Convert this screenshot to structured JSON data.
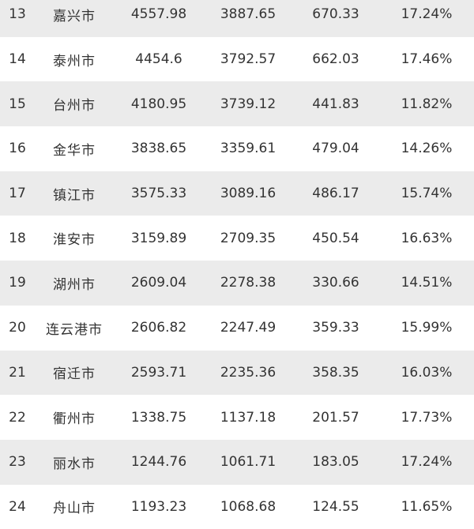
{
  "rows": [
    {
      "rank": "13",
      "city": "嘉兴市",
      "v1": "4557.98",
      "v2": "3887.65",
      "v3": "670.33",
      "pct": "17.24%"
    },
    {
      "rank": "14",
      "city": "泰州市",
      "v1": "4454.6",
      "v2": "3792.57",
      "v3": "662.03",
      "pct": "17.46%"
    },
    {
      "rank": "15",
      "city": "台州市",
      "v1": "4180.95",
      "v2": "3739.12",
      "v3": "441.83",
      "pct": "11.82%"
    },
    {
      "rank": "16",
      "city": "金华市",
      "v1": "3838.65",
      "v2": "3359.61",
      "v3": "479.04",
      "pct": "14.26%"
    },
    {
      "rank": "17",
      "city": "镇江市",
      "v1": "3575.33",
      "v2": "3089.16",
      "v3": "486.17",
      "pct": "15.74%"
    },
    {
      "rank": "18",
      "city": "淮安市",
      "v1": "3159.89",
      "v2": "2709.35",
      "v3": "450.54",
      "pct": "16.63%"
    },
    {
      "rank": "19",
      "city": "湖州市",
      "v1": "2609.04",
      "v2": "2278.38",
      "v3": "330.66",
      "pct": "14.51%"
    },
    {
      "rank": "20",
      "city": "连云港市",
      "v1": "2606.82",
      "v2": "2247.49",
      "v3": "359.33",
      "pct": "15.99%"
    },
    {
      "rank": "21",
      "city": "宿迁市",
      "v1": "2593.71",
      "v2": "2235.36",
      "v3": "358.35",
      "pct": "16.03%"
    },
    {
      "rank": "22",
      "city": "衢州市",
      "v1": "1338.75",
      "v2": "1137.18",
      "v3": "201.57",
      "pct": "17.73%"
    },
    {
      "rank": "23",
      "city": "丽水市",
      "v1": "1244.76",
      "v2": "1061.71",
      "v3": "183.05",
      "pct": "17.24%"
    },
    {
      "rank": "24",
      "city": "舟山市",
      "v1": "1193.23",
      "v2": "1068.68",
      "v3": "124.55",
      "pct": "11.65%"
    }
  ],
  "colors": {
    "stripe": "#ebebeb",
    "text": "#333333"
  }
}
